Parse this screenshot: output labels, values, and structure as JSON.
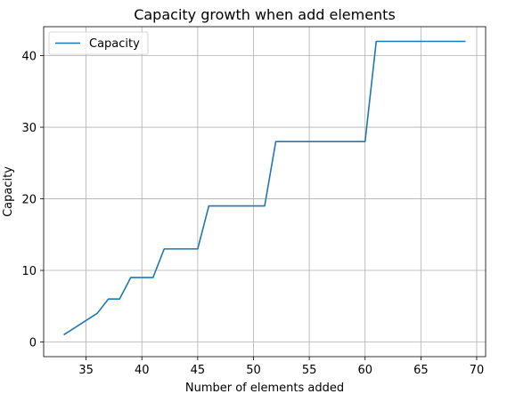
{
  "chart_data": {
    "type": "line",
    "title": "Capacity growth when add elements",
    "xlabel": "Number of elements added",
    "ylabel": "Capacity",
    "xlim": [
      31.2,
      70.8
    ],
    "ylim": [
      -2.05,
      44.05
    ],
    "xticks": [
      35,
      40,
      45,
      50,
      55,
      60,
      65,
      70
    ],
    "yticks": [
      0,
      10,
      20,
      30,
      40
    ],
    "grid": true,
    "legend": "top-left",
    "series": [
      {
        "name": "Capacity",
        "color": "#1f77b4",
        "x": [
          33,
          34,
          35,
          36,
          37,
          38,
          39,
          40,
          41,
          42,
          43,
          44,
          45,
          46,
          47,
          48,
          49,
          50,
          51,
          52,
          53,
          54,
          55,
          56,
          57,
          58,
          59,
          60,
          61,
          62,
          63,
          64,
          65,
          66,
          67,
          68,
          69
        ],
        "y": [
          1,
          2,
          3,
          4,
          6,
          6,
          9,
          9,
          9,
          13,
          13,
          13,
          13,
          19,
          19,
          19,
          19,
          19,
          19,
          28,
          28,
          28,
          28,
          28,
          28,
          28,
          28,
          28,
          42,
          42,
          42,
          42,
          42,
          42,
          42,
          42,
          42
        ]
      }
    ]
  }
}
